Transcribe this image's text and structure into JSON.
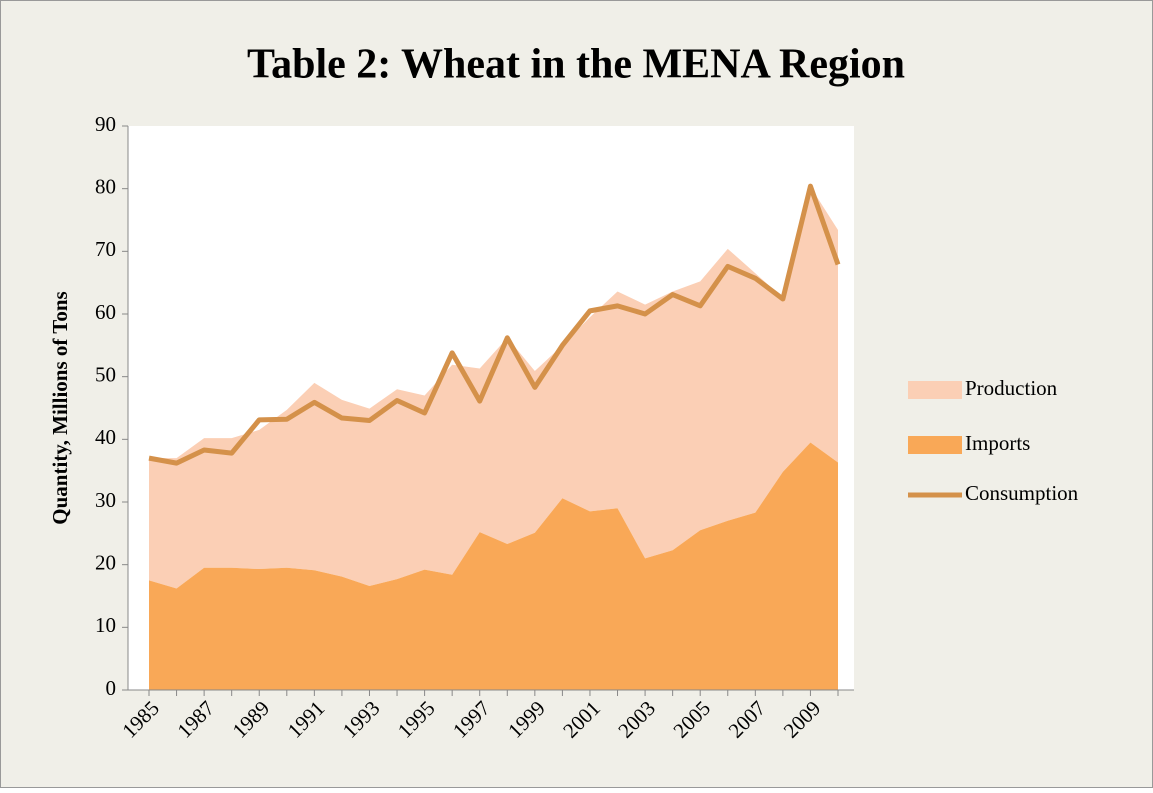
{
  "chart_data": {
    "type": "area",
    "stacked": true,
    "title": "Table 2: Wheat in the MENA Region",
    "ylabel": "Quantity, Millions of Tons",
    "categories": [
      "1985",
      null,
      "1987",
      null,
      "1989",
      null,
      "1991",
      null,
      "1993",
      null,
      "1995",
      null,
      "1997",
      null,
      "1999",
      null,
      "2001",
      null,
      "2003",
      null,
      "2005",
      null,
      "2007",
      null,
      "2009",
      null
    ],
    "series": [
      {
        "name": "Production",
        "type": "area",
        "color": "#fbcfb5",
        "values": [
          19.5,
          20.8,
          20.7,
          20.7,
          22.2,
          25.2,
          29.9,
          28.2,
          28.3,
          30.3,
          27.8,
          33.5,
          26.1,
          32.9,
          25.8,
          24.4,
          31.0,
          34.6,
          40.5,
          41.3,
          39.7,
          43.4,
          38.2,
          27.8,
          40.8,
          37.1
        ]
      },
      {
        "name": "Imports",
        "type": "area",
        "color": "#f9a857",
        "values": [
          17.5,
          16.2,
          19.5,
          19.5,
          19.3,
          19.5,
          19.1,
          18.1,
          16.6,
          17.7,
          19.2,
          18.4,
          25.2,
          23.3,
          25.1,
          30.6,
          28.5,
          29.0,
          21.0,
          22.3,
          25.5,
          27.0,
          28.3,
          34.8,
          39.5,
          36.3
        ]
      },
      {
        "name": "Consumption",
        "type": "line",
        "color": "#d4914a",
        "values": [
          37.0,
          36.2,
          38.3,
          37.8,
          43.1,
          43.2,
          45.9,
          43.4,
          43.0,
          46.2,
          44.2,
          53.8,
          46.1,
          56.2,
          48.3,
          55.0,
          60.5,
          61.3,
          60.0,
          63.1,
          61.3,
          67.6,
          65.7,
          62.4,
          80.4,
          67.9
        ]
      }
    ],
    "stack_order": [
      "Imports",
      "Production"
    ],
    "ylim": [
      0,
      90
    ],
    "yticks": [
      0,
      10,
      20,
      30,
      40,
      50,
      60,
      70,
      80,
      90
    ],
    "legend": "right"
  }
}
